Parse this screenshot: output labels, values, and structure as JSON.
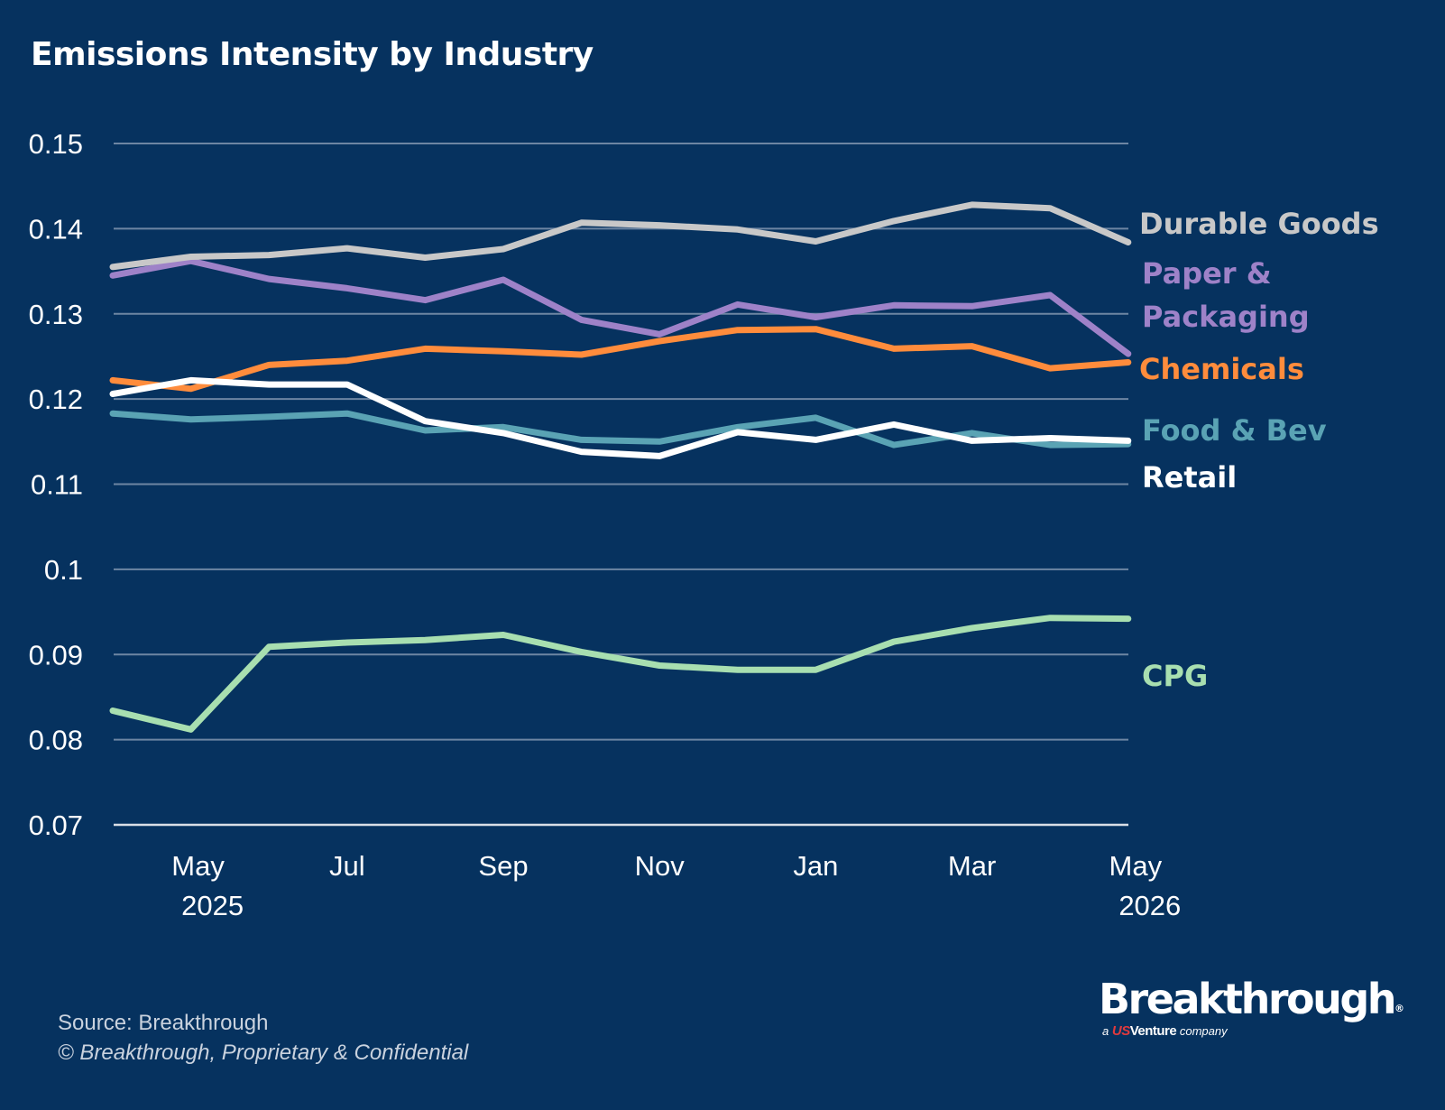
{
  "chart_data": {
    "type": "line",
    "title": "Emissions Intensity by Industry",
    "xlabel": "",
    "ylabel": "",
    "ylim": [
      0.07,
      0.15
    ],
    "y_ticks": [
      "0.15",
      "0.14",
      "0.13",
      "0.12",
      "0.11",
      "0.1",
      "0.09",
      "0.08",
      "0.07"
    ],
    "x": [
      "Apr 2025",
      "May 2025",
      "Jun 2025",
      "Jul 2025",
      "Aug 2025",
      "Sep 2025",
      "Oct 2025",
      "Nov 2025",
      "Dec 2025",
      "Jan 2026",
      "Feb 2026",
      "Mar 2026",
      "Apr 2026",
      "May 2026"
    ],
    "x_tick_labels": [
      {
        "label": "May",
        "year": "2025",
        "x": "May 2025"
      },
      {
        "label": "Jul",
        "year": "",
        "x": "Jul 2025"
      },
      {
        "label": "Sep",
        "year": "",
        "x": "Sep 2025"
      },
      {
        "label": "Nov",
        "year": "",
        "x": "Nov 2025"
      },
      {
        "label": "Jan",
        "year": "",
        "x": "Jan 2026"
      },
      {
        "label": "Mar",
        "year": "",
        "x": "Mar 2026"
      },
      {
        "label": "May",
        "year": "2026",
        "x": "May 2026"
      }
    ],
    "grid": true,
    "legend": "right (direct labels)",
    "series": [
      {
        "name": "Durable Goods",
        "label_lines": [
          "Durable Goods"
        ],
        "color": "#c8c8c8",
        "values": [
          0.1355,
          0.1367,
          0.1369,
          0.1377,
          0.1366,
          0.1376,
          0.1407,
          0.1404,
          0.1399,
          0.1385,
          0.1409,
          0.1428,
          0.1424,
          0.1384
        ]
      },
      {
        "name": "Paper & Packaging",
        "label_lines": [
          "Paper &",
          "Packaging"
        ],
        "color": "#9e82c8",
        "values": [
          0.1345,
          0.1362,
          0.1341,
          0.133,
          0.1316,
          0.134,
          0.1293,
          0.1276,
          0.1311,
          0.1296,
          0.131,
          0.1309,
          0.1322,
          0.1253
        ]
      },
      {
        "name": "Chemicals",
        "label_lines": [
          "Chemicals"
        ],
        "color": "#ff8c3c",
        "values": [
          0.1222,
          0.1212,
          0.124,
          0.1245,
          0.1259,
          0.1256,
          0.1252,
          0.1268,
          0.1281,
          0.1282,
          0.1259,
          0.1262,
          0.1236,
          0.1243
        ]
      },
      {
        "name": "Food & Bev",
        "label_lines": [
          "Food & Bev"
        ],
        "color": "#5aa3b4",
        "values": [
          0.1183,
          0.1176,
          0.1179,
          0.1183,
          0.1163,
          0.1167,
          0.1152,
          0.115,
          0.1167,
          0.1178,
          0.1146,
          0.116,
          0.1146,
          0.1147
        ]
      },
      {
        "name": "Retail",
        "label_lines": [
          "Retail"
        ],
        "color": "#ffffff",
        "values": [
          0.1206,
          0.1222,
          0.1217,
          0.1217,
          0.1174,
          0.116,
          0.1138,
          0.1133,
          0.1161,
          0.1152,
          0.117,
          0.1151,
          0.1154,
          0.1151
        ]
      },
      {
        "name": "CPG",
        "label_lines": [
          "CPG"
        ],
        "color": "#a8dfb0",
        "values": [
          0.0834,
          0.0812,
          0.0909,
          0.0914,
          0.0917,
          0.0923,
          0.0903,
          0.0887,
          0.0882,
          0.0882,
          0.0915,
          0.0931,
          0.0943,
          0.0942
        ]
      }
    ]
  },
  "footer": {
    "source": "Source: Breakthrough",
    "copyright": "© Breakthrough, Proprietary & Confidential"
  },
  "logo": {
    "wordmark": "Breakthrough",
    "registered": "®",
    "tag_prefix": "a",
    "tag_us": "US",
    "tag_venture": "Venture",
    "tag_suffix": "company"
  }
}
